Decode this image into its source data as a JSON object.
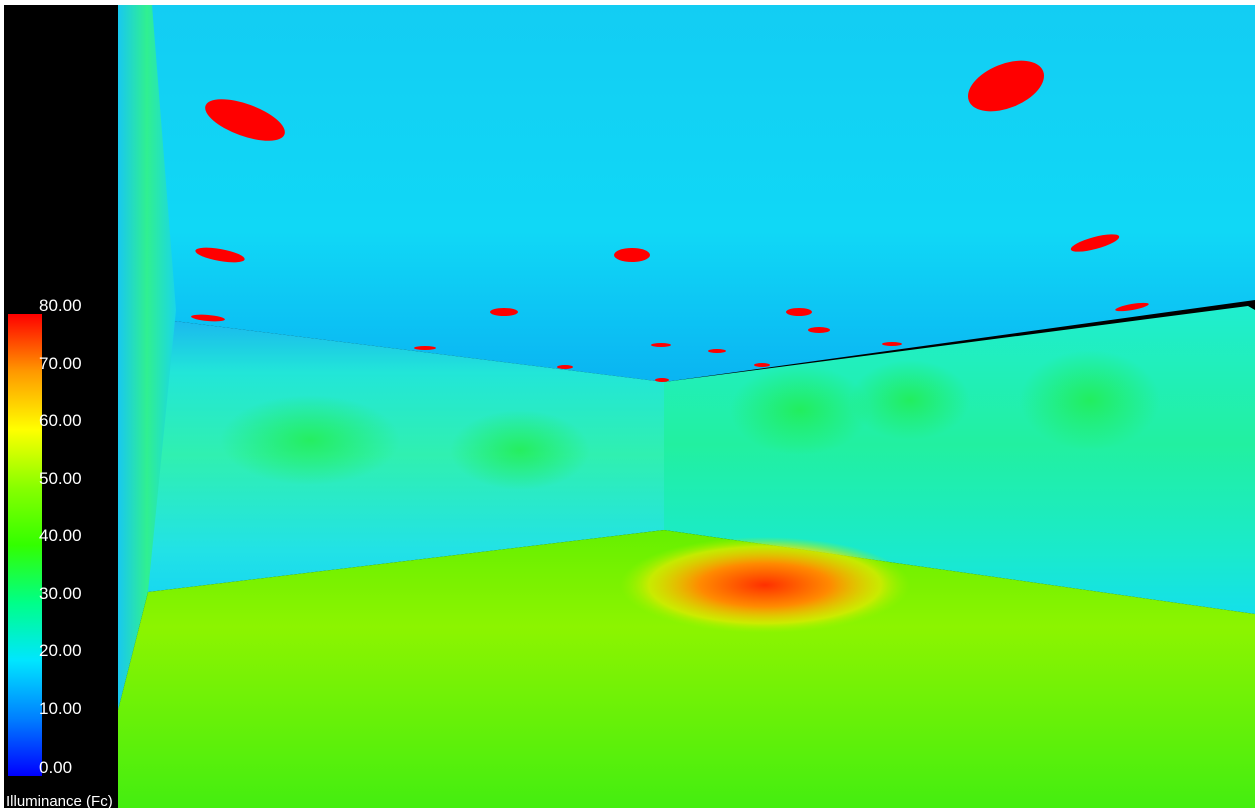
{
  "legend": {
    "title": "Illuminance (Fc)",
    "ticks": [
      "80.00",
      "70.00",
      "60.00",
      "50.00",
      "40.00",
      "30.00",
      "20.00",
      "10.00",
      "0.00"
    ],
    "range": [
      0,
      80
    ],
    "colors": [
      "#0000ff",
      "#0080ff",
      "#00e6ff",
      "#00ff88",
      "#33ff00",
      "#88ff00",
      "#ffff00",
      "#ff9900",
      "#ff0000"
    ]
  },
  "scene": {
    "light_fixture_color": "#ff0000",
    "ceiling_color": "#00e0ff",
    "floor_color": "#44ff00",
    "floor_hotspot_color": "#ff4000"
  }
}
